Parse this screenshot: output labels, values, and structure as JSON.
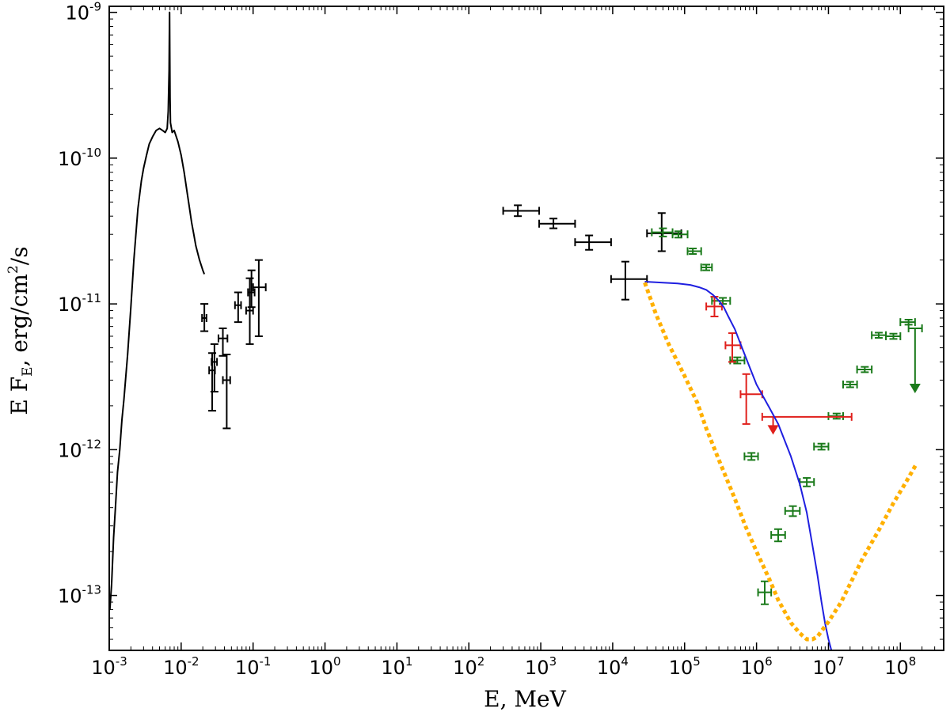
{
  "chart_data": {
    "type": "scatter",
    "xscale": "log",
    "yscale": "log",
    "xlim": [
      0.001,
      400000000
    ],
    "ylim": [
      4.2e-14,
      1.1e-09
    ],
    "xlabel": "E, MeV",
    "ylabel": {
      "main": "E F",
      "sub": "E",
      "units_prefix": ", erg/cm",
      "units_sup": "2",
      "units_suffix": "/s"
    },
    "x_tick_labels": [
      {
        "base": "10",
        "exp": "-3"
      },
      {
        "base": "10",
        "exp": "-2"
      },
      {
        "base": "10",
        "exp": "-1"
      },
      {
        "base": "10",
        "exp": "0"
      },
      {
        "base": "10",
        "exp": "1"
      },
      {
        "base": "10",
        "exp": "2"
      },
      {
        "base": "10",
        "exp": "3"
      },
      {
        "base": "10",
        "exp": "4"
      },
      {
        "base": "10",
        "exp": "5"
      },
      {
        "base": "10",
        "exp": "6"
      },
      {
        "base": "10",
        "exp": "7"
      },
      {
        "base": "10",
        "exp": "8"
      }
    ],
    "y_tick_labels": [
      {
        "base": "10",
        "exp": "-13"
      },
      {
        "base": "10",
        "exp": "-12"
      },
      {
        "base": "10",
        "exp": "-11"
      },
      {
        "base": "10",
        "exp": "-10"
      },
      {
        "base": "10",
        "exp": "-9"
      }
    ],
    "series": [
      {
        "name": "xray-spectrum",
        "kind": "line",
        "color": "#000000",
        "x": [
          0.00102,
          0.00108,
          0.00115,
          0.00122,
          0.0013,
          0.0014,
          0.0015,
          0.0016,
          0.0018,
          0.002,
          0.0022,
          0.0025,
          0.0028,
          0.003,
          0.0033,
          0.0036,
          0.004,
          0.0045,
          0.005,
          0.0055,
          0.006,
          0.0064,
          0.0066,
          0.0068,
          0.00685,
          0.0069,
          0.00695,
          0.007,
          0.0071,
          0.0075,
          0.008,
          0.009,
          0.01,
          0.011,
          0.012,
          0.013,
          0.014,
          0.015,
          0.016,
          0.018,
          0.02,
          0.021
        ],
        "y": [
          8e-14,
          1.2e-13,
          2.5e-13,
          4e-13,
          7e-13,
          1e-12,
          1.6e-12,
          2.2e-12,
          4.5e-12,
          9.5e-12,
          2e-11,
          4.5e-11,
          7e-11,
          8.5e-11,
          1.05e-10,
          1.25e-10,
          1.4e-10,
          1.55e-10,
          1.6e-10,
          1.55e-10,
          1.5e-10,
          1.6e-10,
          2.1e-10,
          4e-10,
          6.5e-10,
          1e-09,
          5e-10,
          2.6e-10,
          1.75e-10,
          1.5e-10,
          1.55e-10,
          1.3e-10,
          1.05e-10,
          8e-11,
          6e-11,
          4.6e-11,
          3.6e-11,
          3e-11,
          2.5e-11,
          2e-11,
          1.7e-11,
          1.6e-11
        ]
      },
      {
        "name": "hard-xray-points",
        "kind": "errorbar",
        "color": "#000000",
        "points": [
          {
            "x": 0.021,
            "y": 8e-12,
            "xlo": 0.0195,
            "xhi": 0.0225,
            "ylo": 6.5e-12,
            "yhi": 1e-11
          },
          {
            "x": 0.027,
            "y": 3.5e-12,
            "xlo": 0.0245,
            "xhi": 0.0295,
            "ylo": 1.85e-12,
            "yhi": 4.6e-12
          },
          {
            "x": 0.029,
            "y": 4e-12,
            "xlo": 0.0265,
            "xhi": 0.0315,
            "ylo": 2.5e-12,
            "yhi": 5.3e-12
          },
          {
            "x": 0.038,
            "y": 5.8e-12,
            "xlo": 0.033,
            "xhi": 0.044,
            "ylo": 4.4e-12,
            "yhi": 6.8e-12
          },
          {
            "x": 0.043,
            "y": 3e-12,
            "xlo": 0.038,
            "xhi": 0.048,
            "ylo": 1.4e-12,
            "yhi": 4.5e-12
          },
          {
            "x": 0.062,
            "y": 9.8e-12,
            "xlo": 0.056,
            "xhi": 0.068,
            "ylo": 7.5e-12,
            "yhi": 1.2e-11
          },
          {
            "x": 0.09,
            "y": 9e-12,
            "xlo": 0.08,
            "xhi": 0.1,
            "ylo": 5.3e-12,
            "yhi": 1.5e-11
          },
          {
            "x": 0.095,
            "y": 1.2e-11,
            "xlo": 0.085,
            "xhi": 0.105,
            "ylo": 9.5e-12,
            "yhi": 1.7e-11
          },
          {
            "x": 0.12,
            "y": 1.3e-11,
            "xlo": 0.1,
            "xhi": 0.15,
            "ylo": 6e-12,
            "yhi": 2e-11
          }
        ]
      },
      {
        "name": "gev-points",
        "kind": "errorbar",
        "color": "#000000",
        "points": [
          {
            "x": 480,
            "y": 4.35e-11,
            "xlo": 300,
            "xhi": 950,
            "ylo": 4e-11,
            "yhi": 4.75e-11
          },
          {
            "x": 1500,
            "y": 3.55e-11,
            "xlo": 950,
            "xhi": 3000,
            "ylo": 3.3e-11,
            "yhi": 3.85e-11
          },
          {
            "x": 4700,
            "y": 2.65e-11,
            "xlo": 3000,
            "xhi": 9500,
            "ylo": 2.35e-11,
            "yhi": 2.95e-11
          },
          {
            "x": 15000,
            "y": 1.48e-11,
            "xlo": 9500,
            "xhi": 30000,
            "ylo": 1.07e-11,
            "yhi": 1.95e-11
          },
          {
            "x": 48000,
            "y": 3.05e-11,
            "xlo": 30000,
            "xhi": 90000,
            "ylo": 2.3e-11,
            "yhi": 4.2e-11
          }
        ]
      },
      {
        "name": "green-points",
        "kind": "errorbar",
        "color": "#1a7a1a",
        "points": [
          {
            "x": 50000,
            "y": 3.1e-11,
            "xlo": 35000,
            "xhi": 68000,
            "ylo": 2.9e-11,
            "yhi": 3.3e-11
          },
          {
            "x": 82000,
            "y": 3e-11,
            "xlo": 68000,
            "xhi": 110000,
            "ylo": 2.85e-11,
            "yhi": 3.15e-11
          },
          {
            "x": 130000,
            "y": 2.3e-11,
            "xlo": 110000,
            "xhi": 170000,
            "ylo": 2.2e-11,
            "yhi": 2.4e-11
          },
          {
            "x": 200000,
            "y": 1.78e-11,
            "xlo": 170000,
            "xhi": 240000,
            "ylo": 1.7e-11,
            "yhi": 1.86e-11
          },
          {
            "x": 340000,
            "y": 1.05e-11,
            "xlo": 240000,
            "xhi": 430000,
            "ylo": 1e-11,
            "yhi": 1.1e-11
          },
          {
            "x": 540000,
            "y": 4.1e-12,
            "xlo": 430000,
            "xhi": 680000,
            "ylo": 3.9e-12,
            "yhi": 4.3e-12
          },
          {
            "x": 850000,
            "y": 9e-13,
            "xlo": 680000,
            "xhi": 1050000,
            "ylo": 8.5e-13,
            "yhi": 9.5e-13
          },
          {
            "x": 1300000,
            "y": 1.05e-13,
            "xlo": 1050000,
            "xhi": 1600000,
            "ylo": 8.7e-14,
            "yhi": 1.25e-13
          },
          {
            "x": 2000000,
            "y": 2.6e-13,
            "xlo": 1600000,
            "xhi": 2500000,
            "ylo": 2.35e-13,
            "yhi": 2.85e-13
          },
          {
            "x": 3200000,
            "y": 3.8e-13,
            "xlo": 2500000,
            "xhi": 4000000,
            "ylo": 3.5e-13,
            "yhi": 4.1e-13
          },
          {
            "x": 5000000,
            "y": 6e-13,
            "xlo": 4000000,
            "xhi": 6300000,
            "ylo": 5.6e-13,
            "yhi": 6.4e-13
          },
          {
            "x": 8000000,
            "y": 1.05e-12,
            "xlo": 6300000,
            "xhi": 10000000,
            "ylo": 1e-12,
            "yhi": 1.1e-12
          },
          {
            "x": 13000000,
            "y": 1.7e-12,
            "xlo": 10000000,
            "xhi": 16000000,
            "ylo": 1.63e-12,
            "yhi": 1.77e-12
          },
          {
            "x": 20000000,
            "y": 2.8e-12,
            "xlo": 16000000,
            "xhi": 25000000,
            "ylo": 2.68e-12,
            "yhi": 2.92e-12
          },
          {
            "x": 32000000,
            "y": 3.55e-12,
            "xlo": 25000000,
            "xhi": 40000000,
            "ylo": 3.4e-12,
            "yhi": 3.7e-12
          },
          {
            "x": 50000000,
            "y": 6.1e-12,
            "xlo": 40000000,
            "xhi": 63000000,
            "ylo": 5.85e-12,
            "yhi": 6.35e-12
          },
          {
            "x": 80000000,
            "y": 6e-12,
            "xlo": 63000000,
            "xhi": 100000000,
            "ylo": 5.75e-12,
            "yhi": 6.25e-12
          },
          {
            "x": 130000000,
            "y": 7.5e-12,
            "xlo": 100000000,
            "xhi": 160000000,
            "ylo": 7.2e-12,
            "yhi": 7.8e-12
          }
        ]
      },
      {
        "name": "green-upper-limit",
        "kind": "upperlimit",
        "color": "#1a7a1a",
        "points": [
          {
            "x": 160000000,
            "y": 6.8e-12,
            "xlo": 130000000,
            "xhi": 200000000,
            "yarrow": 2.5e-12
          }
        ]
      },
      {
        "name": "red-points",
        "kind": "errorbar",
        "color": "#e0201c",
        "points": [
          {
            "x": 260000,
            "y": 9.6e-12,
            "xlo": 200000,
            "xhi": 330000,
            "ylo": 8.2e-12,
            "yhi": 1.12e-11
          },
          {
            "x": 460000,
            "y": 5.2e-12,
            "xlo": 370000,
            "xhi": 600000,
            "ylo": 4e-12,
            "yhi": 6.3e-12
          },
          {
            "x": 720000,
            "y": 2.4e-12,
            "xlo": 600000,
            "xhi": 1200000,
            "ylo": 1.5e-12,
            "yhi": 3.3e-12
          }
        ]
      },
      {
        "name": "red-upper-limit",
        "kind": "upperlimit",
        "color": "#e0201c",
        "points": [
          {
            "x": 1700000,
            "y": 1.68e-12,
            "xlo": 1200000,
            "xhi": 21000000,
            "yarrow": 1.3e-12
          }
        ]
      },
      {
        "name": "model-blue",
        "kind": "line",
        "color": "#1f1fe0",
        "x": [
          28000,
          50000,
          80000,
          120000,
          160000,
          200000,
          250000,
          300000,
          350000,
          400000,
          500000,
          600000,
          800000,
          1000000,
          1500000,
          2000000,
          3000000,
          4000000,
          5000000,
          6000000,
          7000000,
          8000000,
          9000000,
          10000000,
          11000000
        ],
        "y": [
          1.42e-11,
          1.4e-11,
          1.38e-11,
          1.35e-11,
          1.3e-11,
          1.25e-11,
          1.15e-11,
          1.05e-11,
          9.5e-12,
          8.3e-12,
          6.7e-12,
          5.3e-12,
          3.7e-12,
          2.8e-12,
          1.95e-12,
          1.5e-12,
          9e-13,
          5.8e-13,
          3.7e-13,
          2.2e-13,
          1.4e-13,
          9e-14,
          6.4e-14,
          5e-14,
          4.2e-14
        ]
      },
      {
        "name": "sensitivity-orange",
        "kind": "dotted-line",
        "color": "#ffb000",
        "x": [
          28000,
          40000,
          60000,
          100000,
          150000,
          200000,
          300000,
          500000,
          700000,
          1000000,
          1500000,
          2000000,
          3000000,
          4000000,
          5000000,
          6000000,
          7000000,
          8000000,
          10000000,
          15000000,
          20000000,
          30000000,
          50000000,
          80000000,
          120000000,
          170000000
        ],
        "y": [
          1.4e-11,
          8.5e-12,
          5.3e-12,
          3.2e-12,
          2.1e-12,
          1.4e-12,
          8.5e-13,
          4.6e-13,
          3e-13,
          2e-13,
          1.3e-13,
          9.3e-14,
          6.5e-14,
          5.5e-14,
          5e-14,
          5e-14,
          5.2e-14,
          5.7e-14,
          6.6e-14,
          9e-14,
          1.2e-13,
          1.8e-13,
          2.8e-13,
          4.3e-13,
          6e-13,
          8.1e-13
        ]
      }
    ]
  }
}
